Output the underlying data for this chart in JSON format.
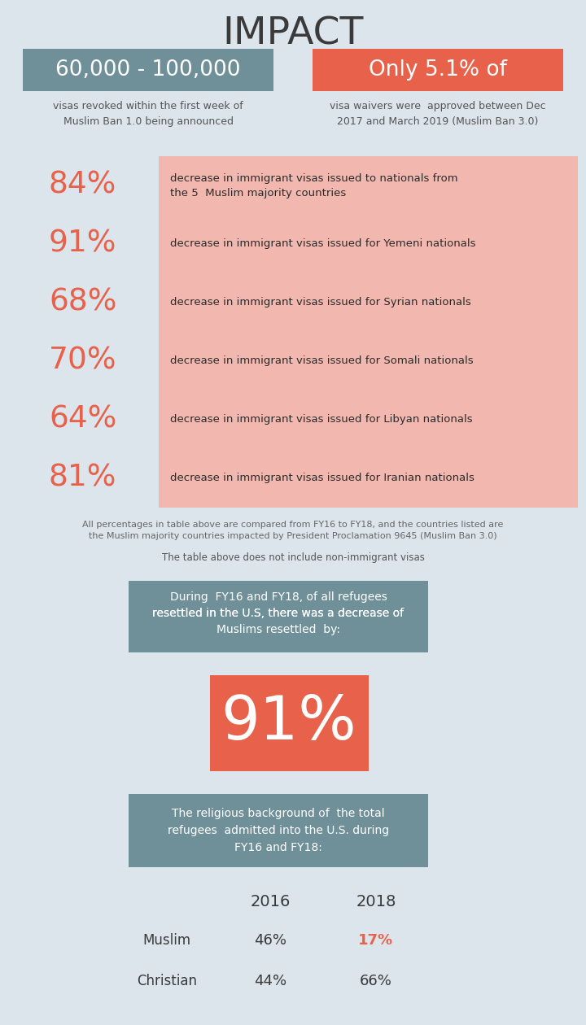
{
  "title": "IMPACT",
  "bg_color": "#dce4ec",
  "box1_color": "#6f9098",
  "box1_text": "60,000 - 100,000",
  "box1_subtext": "visas revoked within the first week of\nMuslim Ban 1.0 being announced",
  "box2_color": "#e8614a",
  "box2_text": "Only 5.1% of",
  "box2_subtext": "visa waivers were  approved between Dec\n2017 and March 2019 (Muslim Ban 3.0)",
  "table_bg": "#f2b8b0",
  "table_rows": [
    {
      "pct": "84%",
      "desc": "decrease in immigrant visas issued to nationals from\nthe 5  Muslim majority countries"
    },
    {
      "pct": "91%",
      "desc": "decrease in immigrant visas issued for Yemeni nationals"
    },
    {
      "pct": "68%",
      "desc": "decrease in immigrant visas issued for Syrian nationals"
    },
    {
      "pct": "70%",
      "desc": "decrease in immigrant visas issued for Somali nationals"
    },
    {
      "pct": "64%",
      "desc": "decrease in immigrant visas issued for Libyan nationals"
    },
    {
      "pct": "81%",
      "desc": "decrease in immigrant visas issued for Iranian nationals"
    }
  ],
  "pct_color": "#e8614a",
  "footnote1": "All percentages in table above are compared from FY16 to FY18, and the countries listed are\nthe Muslim majority countries impacted by President Proclamation 9645 (Muslim Ban 3.0)",
  "footnote2": "The table above does not include non-immigrant visas",
  "mid_box_color": "#6f9098",
  "mid_box_line1": "During  FY16 and FY18, of all refugees",
  "mid_box_line2": "resettled in the U.S, there was a ",
  "mid_box_underline": "decrease",
  "mid_box_line3": " of",
  "mid_box_line4": "Muslims resettled  by:",
  "big_pct": "91%",
  "big_pct_color": "#e8614a",
  "bottom_box_color": "#6f9098",
  "bottom_box_text": "The religious background of  the total\nrefugees  admitted into the U.S. during\nFY16 and FY18:",
  "years": [
    "2016",
    "2018"
  ],
  "religion_rows": [
    {
      "label": "Muslim",
      "v2016": "46%",
      "v2018": "17%",
      "v2018_color": "#e8614a"
    },
    {
      "label": "Christian",
      "v2016": "44%",
      "v2018": "66%",
      "v2018_color": "#3a3a3a"
    }
  ]
}
